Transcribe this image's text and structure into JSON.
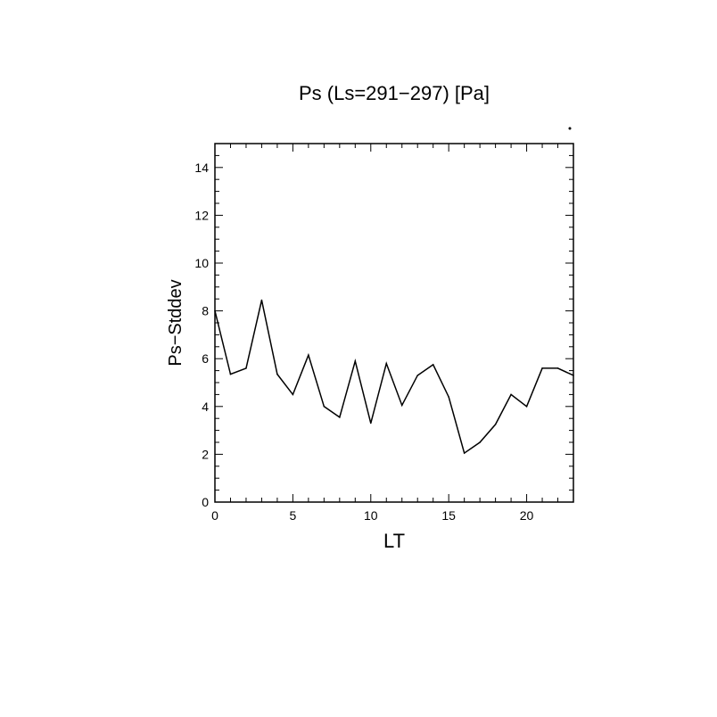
{
  "chart_data": {
    "type": "line",
    "title": "Ps (Ls=291−297) [Pa]",
    "xlabel": "LT",
    "ylabel": "Ps−Stddev",
    "xlim": [
      0,
      23
    ],
    "ylim": [
      0,
      15
    ],
    "xticks": [
      0,
      5,
      10,
      15,
      20
    ],
    "yticks": [
      0,
      2,
      4,
      6,
      8,
      10,
      12,
      14
    ],
    "xtick_labels": [
      "0",
      "5",
      "10",
      "15",
      "20"
    ],
    "ytick_labels": [
      "0",
      "2",
      "4",
      "6",
      "8",
      "10",
      "12",
      "14"
    ],
    "grid": false,
    "line_color": "#000000",
    "series": [
      {
        "x": [
          0,
          1,
          2,
          3,
          4,
          5,
          6,
          7,
          8,
          9,
          10,
          11,
          12,
          13,
          14,
          15,
          16,
          17,
          18,
          19,
          20,
          21,
          22,
          23
        ],
        "values": [
          8.0,
          5.35,
          5.6,
          8.45,
          5.35,
          4.5,
          6.15,
          4.0,
          3.55,
          5.9,
          3.3,
          5.8,
          4.05,
          5.3,
          5.75,
          4.4,
          2.05,
          2.5,
          3.25,
          4.5,
          4.0,
          5.6,
          5.6,
          5.3
        ]
      }
    ]
  }
}
